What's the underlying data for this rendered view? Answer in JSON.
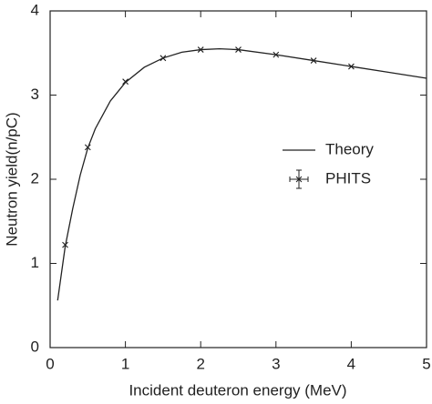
{
  "chart_data": {
    "type": "line",
    "x_label": "Incident deuteron energy (MeV)",
    "y_label": "Neutron yield(n/pC)",
    "xlim": [
      0,
      5
    ],
    "ylim": [
      0,
      4
    ],
    "xticks": [
      0,
      1,
      2,
      3,
      4,
      5
    ],
    "yticks": [
      0,
      1,
      2,
      3,
      4
    ],
    "legend": "right",
    "series": [
      {
        "name": "Theory",
        "type": "line",
        "color": "#222222",
        "x": [
          0.1,
          0.2,
          0.3,
          0.4,
          0.5,
          0.6,
          0.8,
          1.0,
          1.25,
          1.5,
          1.75,
          2.0,
          2.25,
          2.5,
          3.0,
          3.5,
          4.0,
          4.5,
          5.0
        ],
        "values": [
          0.56,
          1.2,
          1.65,
          2.05,
          2.37,
          2.6,
          2.93,
          3.15,
          3.33,
          3.44,
          3.51,
          3.54,
          3.55,
          3.54,
          3.48,
          3.41,
          3.34,
          3.27,
          3.2
        ]
      },
      {
        "name": "PHITS",
        "type": "scatter",
        "color": "#222222",
        "x": [
          0.2,
          0.5,
          1.0,
          1.5,
          2.0,
          2.5,
          3.0,
          3.5,
          4.0
        ],
        "values": [
          1.22,
          2.38,
          3.16,
          3.44,
          3.54,
          3.54,
          3.48,
          3.41,
          3.34
        ]
      }
    ]
  }
}
